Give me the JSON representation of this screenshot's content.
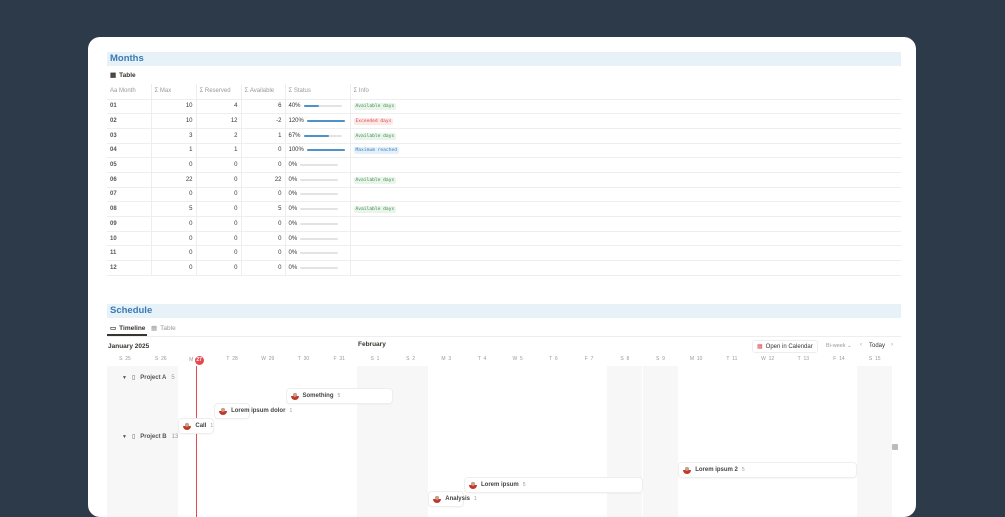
{
  "months": {
    "title": "Months",
    "view_tab": "Table",
    "columns": [
      "Aa Month",
      "Σ Max",
      "Σ Reserved",
      "Σ Available",
      "Σ Status",
      "Σ Info"
    ],
    "rows": [
      {
        "month": "01",
        "max": "10",
        "reserved": "4",
        "available": "6",
        "status": "40%",
        "progress": 40,
        "info": "Available days",
        "info_type": "green"
      },
      {
        "month": "02",
        "max": "10",
        "reserved": "12",
        "available": "-2",
        "status": "120%",
        "progress": 100,
        "info": "Exceeded days",
        "info_type": "red"
      },
      {
        "month": "03",
        "max": "3",
        "reserved": "2",
        "available": "1",
        "status": "67%",
        "progress": 67,
        "info": "Available days",
        "info_type": "green"
      },
      {
        "month": "04",
        "max": "1",
        "reserved": "1",
        "available": "0",
        "status": "100%",
        "progress": 100,
        "info": "Maximum reached",
        "info_type": "blue"
      },
      {
        "month": "05",
        "max": "0",
        "reserved": "0",
        "available": "0",
        "status": "0%",
        "progress": 0,
        "info": "",
        "info_type": ""
      },
      {
        "month": "06",
        "max": "22",
        "reserved": "0",
        "available": "22",
        "status": "0%",
        "progress": 0,
        "info": "Available days",
        "info_type": "green"
      },
      {
        "month": "07",
        "max": "0",
        "reserved": "0",
        "available": "0",
        "status": "0%",
        "progress": 0,
        "info": "",
        "info_type": ""
      },
      {
        "month": "08",
        "max": "5",
        "reserved": "0",
        "available": "5",
        "status": "0%",
        "progress": 0,
        "info": "Available days",
        "info_type": "green"
      },
      {
        "month": "09",
        "max": "0",
        "reserved": "0",
        "available": "0",
        "status": "0%",
        "progress": 0,
        "info": "",
        "info_type": ""
      },
      {
        "month": "10",
        "max": "0",
        "reserved": "0",
        "available": "0",
        "status": "0%",
        "progress": 0,
        "info": "",
        "info_type": ""
      },
      {
        "month": "11",
        "max": "0",
        "reserved": "0",
        "available": "0",
        "status": "0%",
        "progress": 0,
        "info": "",
        "info_type": ""
      },
      {
        "month": "12",
        "max": "0",
        "reserved": "0",
        "available": "0",
        "status": "0%",
        "progress": 0,
        "info": "",
        "info_type": ""
      }
    ]
  },
  "schedule": {
    "title": "Schedule",
    "tabs": [
      "Timeline",
      "Table"
    ],
    "month_label": "January 2025",
    "next_month_label": "February",
    "open_calendar": "Open in Calendar",
    "range": "Bi-week",
    "today": "Today",
    "days": [
      {
        "d": "S",
        "n": "25",
        "we": true
      },
      {
        "d": "S",
        "n": "26",
        "we": true
      },
      {
        "d": "M",
        "n": "27",
        "today": true
      },
      {
        "d": "T",
        "n": "28"
      },
      {
        "d": "W",
        "n": "29"
      },
      {
        "d": "T",
        "n": "30"
      },
      {
        "d": "F",
        "n": "31"
      },
      {
        "d": "S",
        "n": "1",
        "we": true
      },
      {
        "d": "S",
        "n": "2",
        "we": true
      },
      {
        "d": "M",
        "n": "3"
      },
      {
        "d": "T",
        "n": "4"
      },
      {
        "d": "W",
        "n": "5"
      },
      {
        "d": "T",
        "n": "6"
      },
      {
        "d": "F",
        "n": "7"
      },
      {
        "d": "S",
        "n": "8",
        "we": true
      },
      {
        "d": "S",
        "n": "9",
        "we": true
      },
      {
        "d": "M",
        "n": "10"
      },
      {
        "d": "T",
        "n": "11"
      },
      {
        "d": "W",
        "n": "12"
      },
      {
        "d": "T",
        "n": "13"
      },
      {
        "d": "F",
        "n": "14"
      },
      {
        "d": "S",
        "n": "15",
        "we": true
      }
    ],
    "groups": [
      {
        "name": "Project A",
        "count": "5"
      },
      {
        "name": "Project B",
        "count": "13"
      }
    ],
    "events": [
      {
        "name": "Something",
        "count": "5",
        "start": 5,
        "len": 3
      },
      {
        "name": "Lorem ipsum dolor",
        "count": "1",
        "start": 3,
        "len": 1
      },
      {
        "name": "Call",
        "count": "1",
        "start": 2,
        "len": 1
      },
      {
        "name": "Lorem ipsum 2",
        "count": "5",
        "start": 16,
        "len": 5
      },
      {
        "name": "Lorem ipsum",
        "count": "5",
        "start": 10,
        "len": 5
      },
      {
        "name": "Analysis",
        "count": "1",
        "start": 9,
        "len": 1
      }
    ],
    "colors": {
      "today": "#e5484d",
      "accent": "#3a7ab4"
    }
  }
}
